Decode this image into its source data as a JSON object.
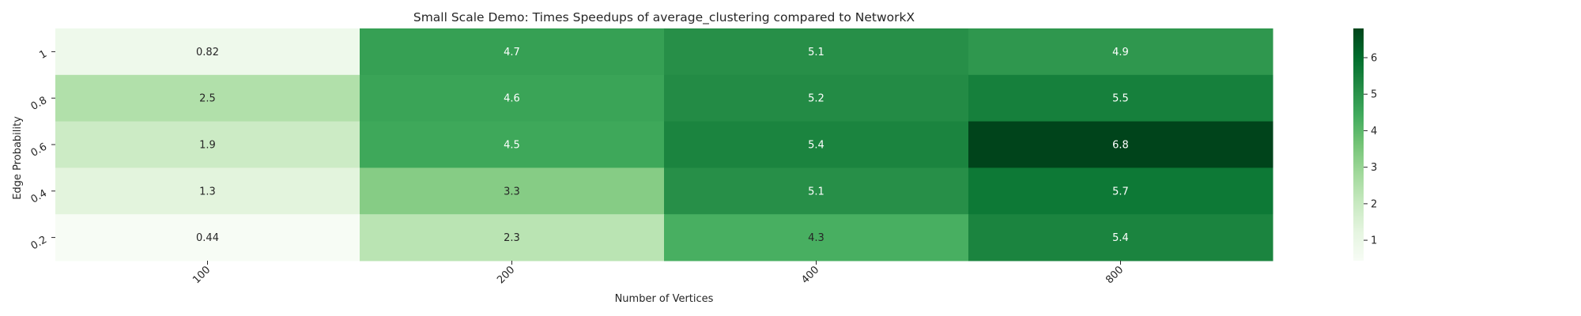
{
  "chart_data": {
    "type": "heatmap",
    "title": "Small Scale Demo: Times Speedups of average_clustering compared to NetworkX",
    "xlabel": "Number of Vertices",
    "ylabel": "Edge Probability",
    "x_categories": [
      "100",
      "200",
      "400",
      "800"
    ],
    "y_categories": [
      "1",
      "0.8",
      "0.6",
      "0.4",
      "0.2"
    ],
    "values": [
      [
        0.82,
        4.7,
        5.1,
        4.9
      ],
      [
        2.5,
        4.6,
        5.2,
        5.5
      ],
      [
        1.9,
        4.5,
        5.4,
        6.8
      ],
      [
        1.3,
        3.3,
        5.1,
        5.7
      ],
      [
        0.44,
        2.3,
        4.3,
        5.4
      ]
    ],
    "value_labels": [
      [
        "0.82",
        "4.7",
        "5.1",
        "4.9"
      ],
      [
        "2.5",
        "4.6",
        "5.2",
        "5.5"
      ],
      [
        "1.9",
        "4.5",
        "5.4",
        "6.8"
      ],
      [
        "1.3",
        "3.3",
        "5.1",
        "5.7"
      ],
      [
        "0.44",
        "2.3",
        "4.3",
        "5.4"
      ]
    ],
    "colormap": "Greens",
    "color_range": [
      0.44,
      6.8
    ],
    "colorbar_ticks": [
      "1",
      "2",
      "3",
      "4",
      "5",
      "6"
    ],
    "colorbar_tick_values": [
      1,
      2,
      3,
      4,
      5,
      6
    ],
    "grid": false,
    "colorbar_placement": "right"
  }
}
